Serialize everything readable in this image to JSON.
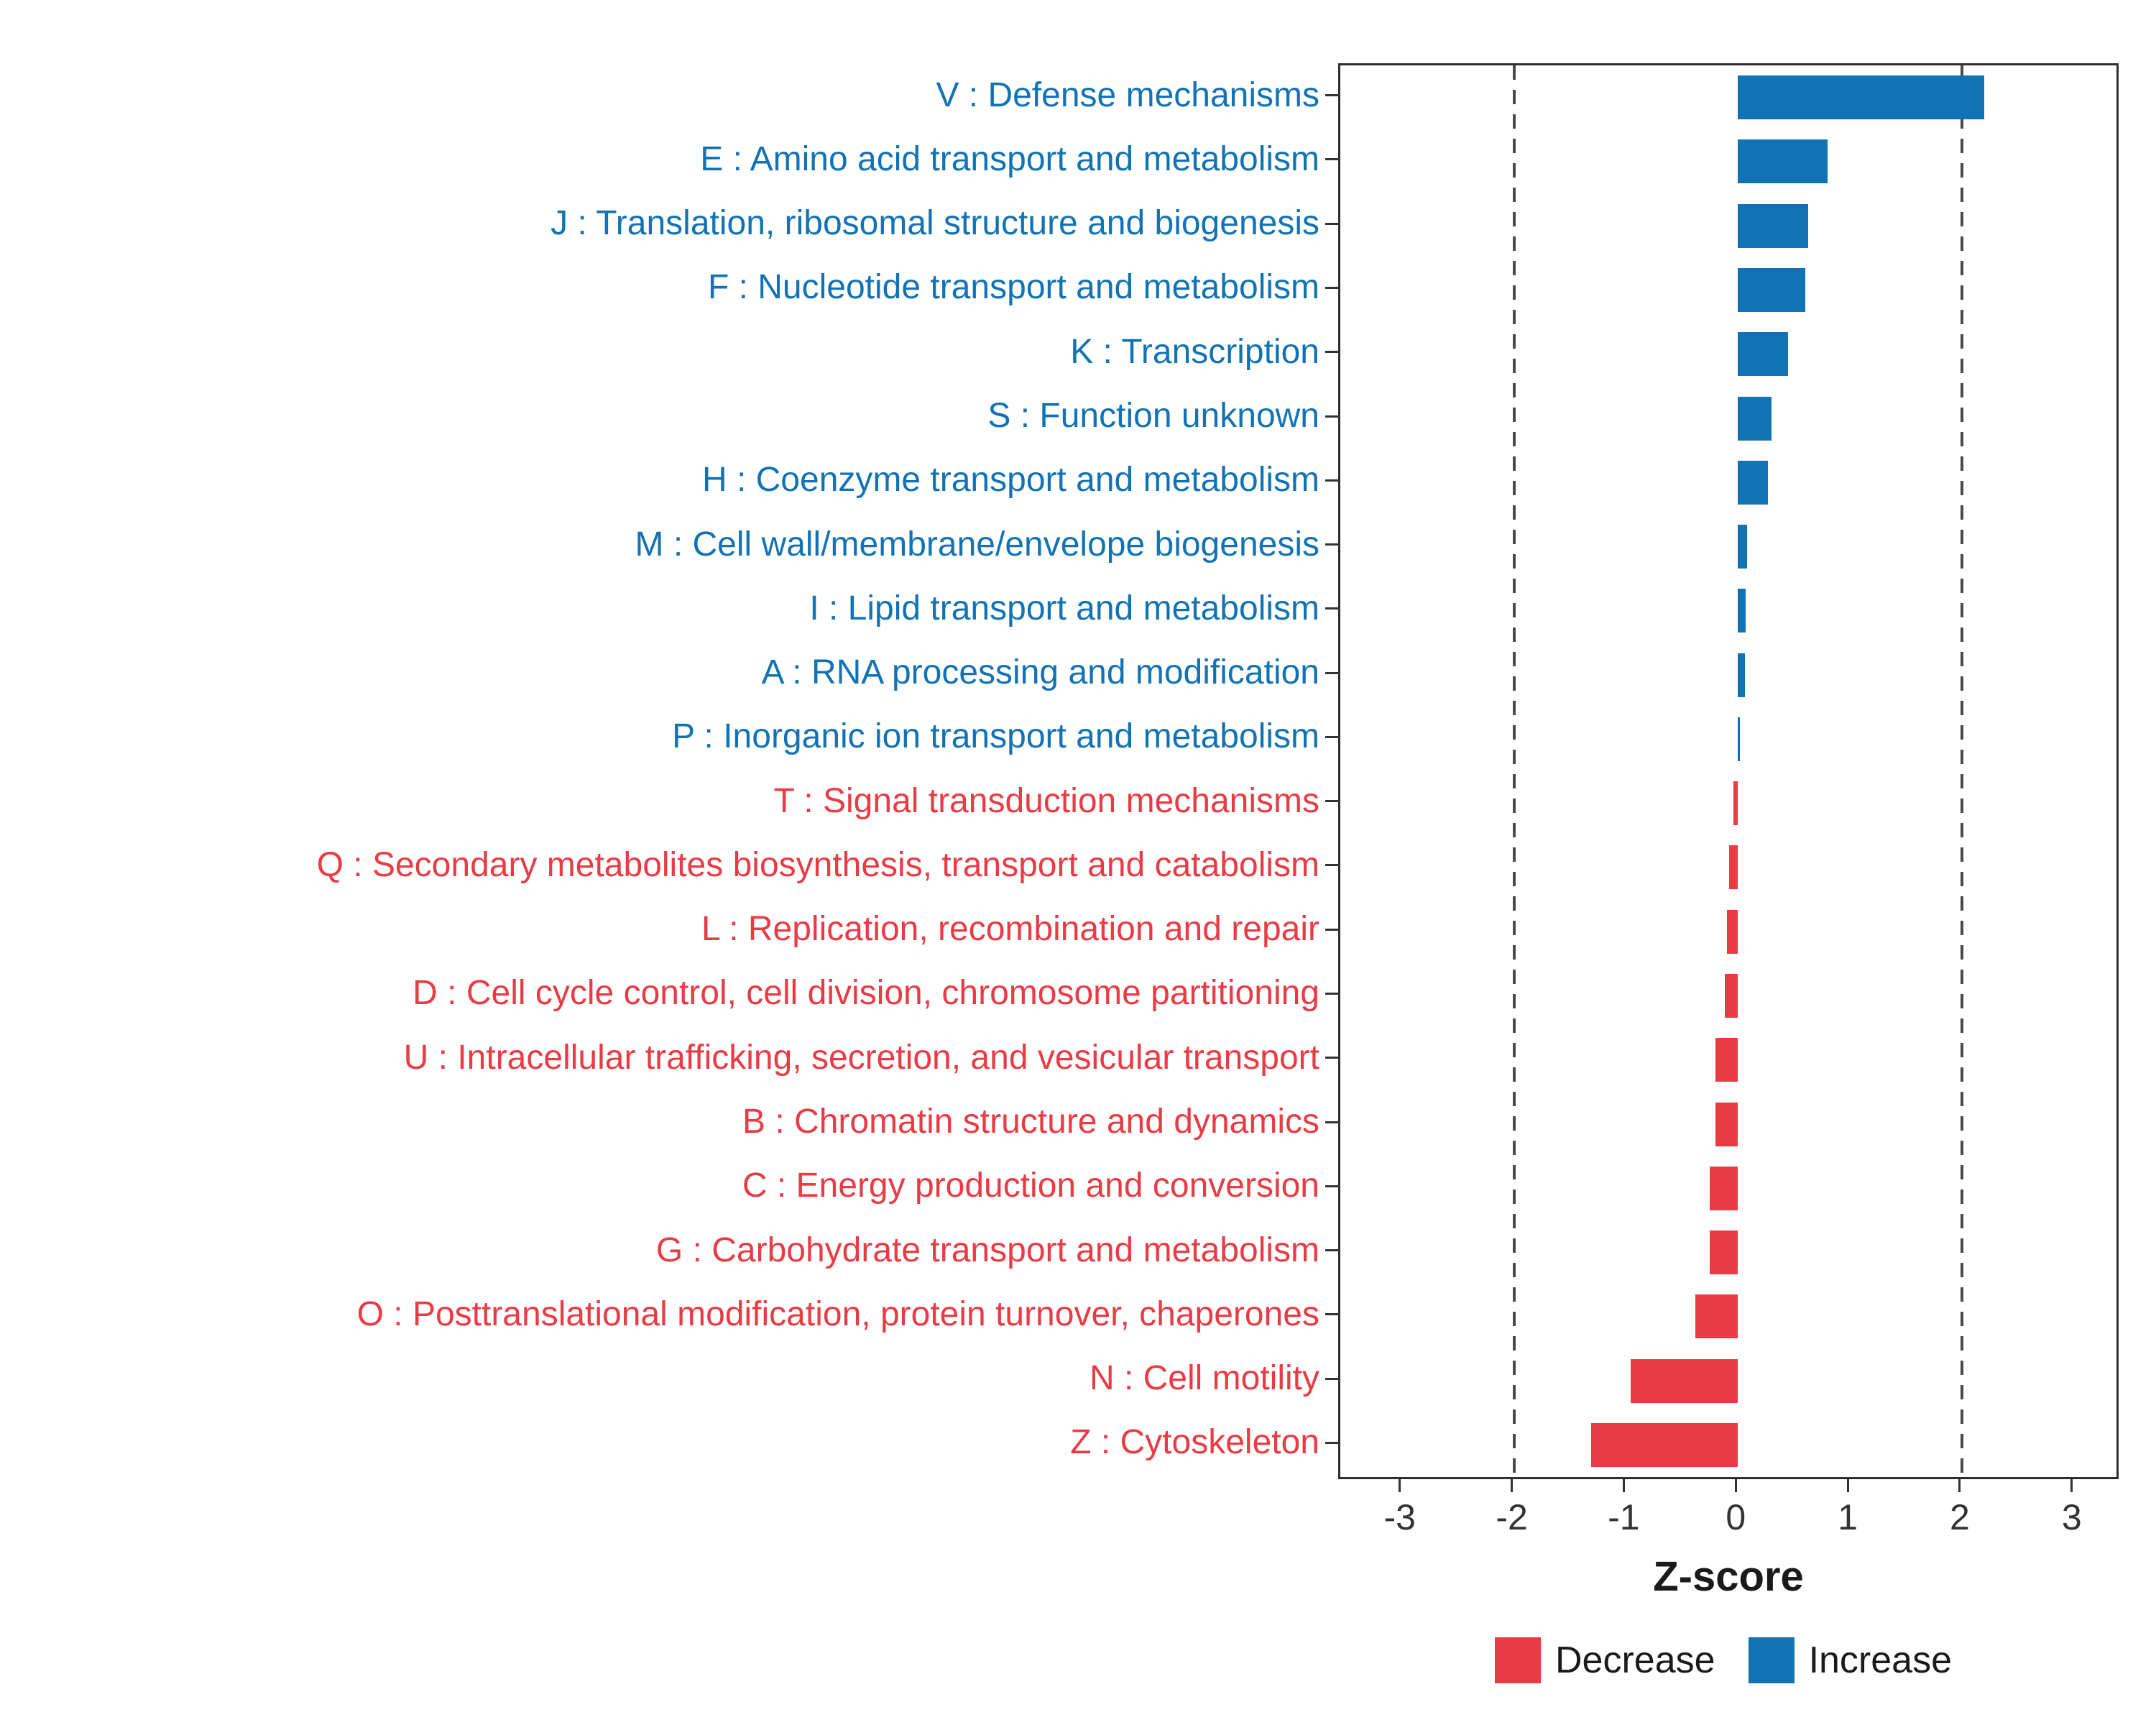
{
  "chart_data": {
    "type": "bar",
    "orientation": "horizontal",
    "title": "",
    "xlabel": "Z-score",
    "ylabel": "",
    "xlim": [
      -3.55,
      3.38
    ],
    "xticks": [
      -3,
      -2,
      -1,
      0,
      1,
      2,
      3
    ],
    "dashed_lines": [
      -2,
      2
    ],
    "grid": false,
    "colors": {
      "Increase": "#1273B4",
      "Decrease": "#E93B44"
    },
    "categories": [
      {
        "label": "V : Defense mechanisms",
        "value": 2.2,
        "group": "Increase"
      },
      {
        "label": "E : Amino acid transport and metabolism",
        "value": 0.8,
        "group": "Increase"
      },
      {
        "label": "J : Translation, ribosomal structure and biogenesis",
        "value": 0.63,
        "group": "Increase"
      },
      {
        "label": "F : Nucleotide transport and metabolism",
        "value": 0.6,
        "group": "Increase"
      },
      {
        "label": "K : Transcription",
        "value": 0.45,
        "group": "Increase"
      },
      {
        "label": "S : Function unknown",
        "value": 0.3,
        "group": "Increase"
      },
      {
        "label": "H : Coenzyme transport and metabolism",
        "value": 0.27,
        "group": "Increase"
      },
      {
        "label": "M : Cell wall/membrane/envelope biogenesis",
        "value": 0.08,
        "group": "Increase"
      },
      {
        "label": "I : Lipid transport and metabolism",
        "value": 0.07,
        "group": "Increase"
      },
      {
        "label": "A : RNA processing and modification",
        "value": 0.06,
        "group": "Increase"
      },
      {
        "label": "P : Inorganic ion transport and metabolism",
        "value": 0.02,
        "group": "Increase"
      },
      {
        "label": "T : Signal transduction mechanisms",
        "value": -0.04,
        "group": "Decrease"
      },
      {
        "label": "Q : Secondary metabolites biosynthesis, transport and catabolism",
        "value": -0.08,
        "group": "Decrease"
      },
      {
        "label": "L : Replication, recombination and repair",
        "value": -0.1,
        "group": "Decrease"
      },
      {
        "label": "D : Cell cycle control, cell division, chromosome partitioning",
        "value": -0.12,
        "group": "Decrease"
      },
      {
        "label": "U : Intracellular trafficking, secretion, and vesicular transport",
        "value": -0.2,
        "group": "Decrease"
      },
      {
        "label": "B : Chromatin structure and dynamics",
        "value": -0.2,
        "group": "Decrease"
      },
      {
        "label": "C : Energy production and conversion",
        "value": -0.25,
        "group": "Decrease"
      },
      {
        "label": "G : Carbohydrate transport and metabolism",
        "value": -0.25,
        "group": "Decrease"
      },
      {
        "label": "O : Posttranslational modification, protein turnover, chaperones",
        "value": -0.38,
        "group": "Decrease"
      },
      {
        "label": "N : Cell motility",
        "value": -0.96,
        "group": "Decrease"
      },
      {
        "label": "Z : Cytoskeleton",
        "value": -1.31,
        "group": "Decrease"
      }
    ],
    "legend": {
      "position": "bottom",
      "entries": [
        {
          "label": "Decrease",
          "color": "#E93B44"
        },
        {
          "label": "Increase",
          "color": "#1273B4"
        }
      ]
    }
  }
}
